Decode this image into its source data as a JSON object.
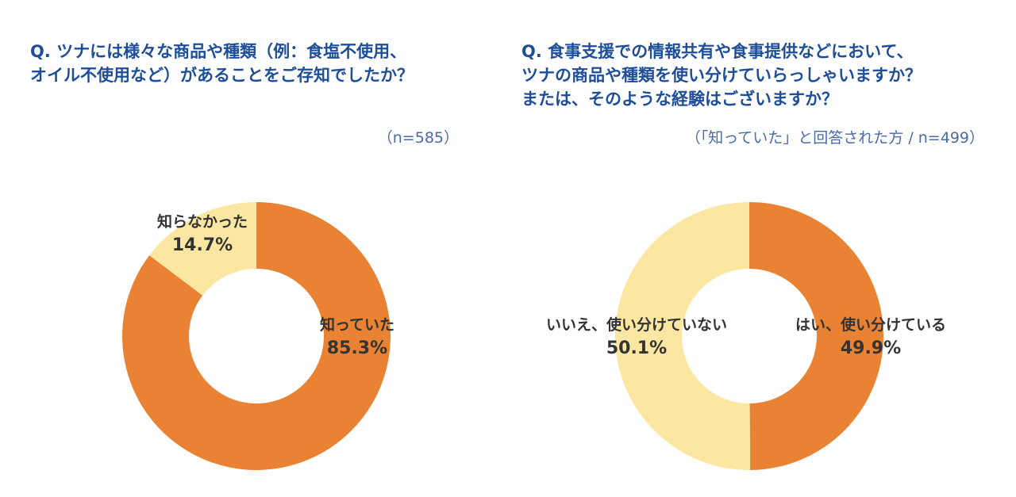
{
  "colors": {
    "title": "#1f4e99",
    "orange": "#e98233",
    "light_yellow": "#fbe7a1"
  },
  "charts": {
    "left": {
      "title": "Q. ツナには様々な商品や種類（例：食塩不使用、\nオイル不使用など）があることをご存知でしたか？",
      "note": "（n=585）"
    },
    "right": {
      "title": "Q. 食事支援での情報共有や食事提供などにおいて、\nツナの商品や種類を使い分けていらっしゃいますか？\nまたは、そのような経験はございますか？",
      "note": "（「知っていた」と回答された方 / n=499）"
    }
  },
  "chart_data": [
    {
      "type": "pie",
      "donut": true,
      "title": "Q. ツナには様々な商品や種類（例：食塩不使用、オイル不使用など）があることをご存知でしたか？",
      "sample": "（n=585）",
      "slices": [
        {
          "name": "知っていた",
          "label": "85.3%",
          "value": 85.3,
          "color": "#e98233"
        },
        {
          "name": "知らなかった",
          "label": "14.7%",
          "value": 14.7,
          "color": "#fbe7a1"
        }
      ]
    },
    {
      "type": "pie",
      "donut": true,
      "title": "Q. 食事支援での情報共有や食事提供などにおいて、ツナの商品や種類を使い分けていらっしゃいますか？またはそのような経験はございますか？",
      "sample": "（「知っていた」と回答された方 / n=499）",
      "slices": [
        {
          "name": "はい、使い分けている",
          "label": "49.9%",
          "value": 49.9,
          "color": "#e98233"
        },
        {
          "name": "いいえ、使い分けていない",
          "label": "50.1%",
          "value": 50.1,
          "color": "#fbe7a1"
        }
      ]
    }
  ]
}
